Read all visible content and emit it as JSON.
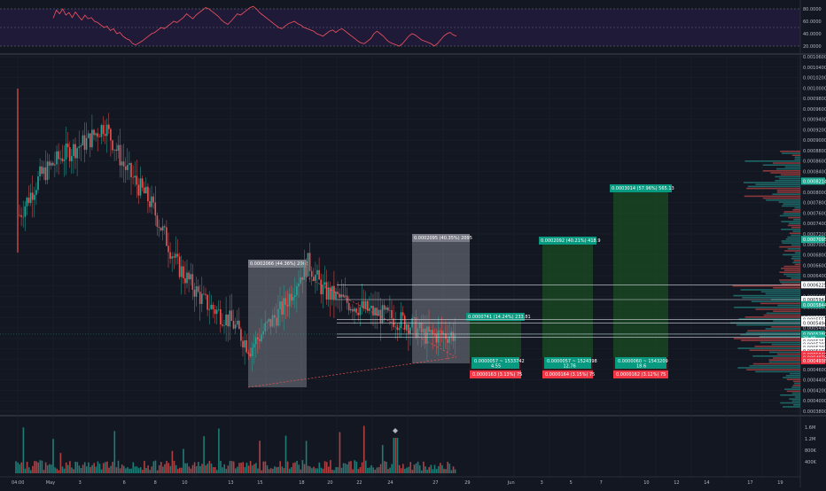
{
  "rsi": {
    "levels": [
      "80.0000",
      "60.0000",
      "40.0000",
      "20.0000"
    ],
    "values": [
      65,
      78,
      72,
      80,
      70,
      74,
      66,
      75,
      68,
      62,
      70,
      64,
      66,
      60,
      58,
      54,
      50,
      52,
      45,
      48,
      40,
      42,
      36,
      32,
      30,
      24,
      22,
      25,
      28,
      32,
      36,
      40,
      42,
      46,
      50,
      48,
      52,
      56,
      60,
      58,
      62,
      66,
      72,
      68,
      64,
      70,
      74,
      78,
      82,
      80,
      76,
      72,
      68,
      62,
      58,
      55,
      60,
      66,
      72,
      70,
      74,
      78,
      82,
      84,
      80,
      74,
      70,
      66,
      62,
      58,
      54,
      50,
      48,
      52,
      56,
      58,
      60,
      56,
      54,
      50,
      48,
      46,
      44,
      40,
      38,
      36,
      40,
      44,
      46,
      42,
      46,
      48,
      44,
      40,
      36,
      32,
      28,
      25,
      24,
      28,
      32,
      40,
      44,
      40,
      36,
      30,
      26,
      24,
      22,
      20,
      24,
      30,
      36,
      40,
      38,
      34,
      30,
      28,
      26,
      24,
      20,
      24,
      30,
      36,
      40,
      42,
      38,
      36
    ]
  },
  "price_axis": {
    "ticks": [
      "0.0010600",
      "0.0010400",
      "0.0010200",
      "0.0010000",
      "0.0009800",
      "0.0009600",
      "0.0009400",
      "0.0009200",
      "0.0009000",
      "0.0008800",
      "0.0008600",
      "0.0008400",
      "0.0008200",
      "0.0008000",
      "0.0007800",
      "0.0007600",
      "0.0007400",
      "0.0007200",
      "0.0007000",
      "0.0006800",
      "0.0006600",
      "0.0006400",
      "0.0006200",
      "0.0006000",
      "0.0005800",
      "0.0005600",
      "0.0005400",
      "0.0005200",
      "0.0005000",
      "0.0004800",
      "0.0004600",
      "0.0004400",
      "0.0004200",
      "0.0004000",
      "0.0003800"
    ],
    "badges": [
      {
        "text": "0.0008214",
        "color": "#22ab94",
        "price": 0.0008214
      },
      {
        "text": "0.0007095",
        "color": "#22ab94",
        "price": 0.0007095
      },
      {
        "text": "0.0006225",
        "color": "#ffffff",
        "price": 0.0006225
      },
      {
        "text": "0.0005942",
        "color": "#ffffff",
        "price": 0.0005942
      },
      {
        "text": "0.0005844",
        "color": "#22ab94",
        "price": 0.0005844
      },
      {
        "text": "0.0005557",
        "color": "#ffffff",
        "price": 0.0005557
      },
      {
        "text": "0.0005494",
        "color": "#ffffff",
        "price": 0.0005494
      },
      {
        "text": "0.0005280",
        "color": "#22ab94",
        "price": 0.000528
      },
      {
        "text": "30:40",
        "color": "#22ab94",
        "price": 0.00052
      },
      {
        "text": "0.0005257",
        "color": "#ffffff",
        "price": 0.000514
      },
      {
        "text": "0.0005203",
        "color": "#ffffff",
        "price": 0.000508
      },
      {
        "text": "0.0005207",
        "color": "#ffffff",
        "price": 0.000502
      },
      {
        "text": "0.0005070",
        "color": "#ffffff",
        "price": 0.000496
      },
      {
        "text": "0.0005040",
        "color": "#f23645",
        "price": 0.000489
      },
      {
        "text": "0.0004979",
        "color": "#f23645",
        "price": 0.000483
      },
      {
        "text": "0.0004938",
        "color": "#f23645",
        "price": 0.000477
      }
    ]
  },
  "time_axis": {
    "labels": [
      "04:00",
      "May",
      "3",
      "6",
      "8",
      "10",
      "13",
      "15",
      "18",
      "20",
      "22",
      "24",
      "27",
      "29",
      "Jun",
      "3",
      "5",
      "7",
      "10",
      "12",
      "14",
      "17",
      "19"
    ]
  },
  "volume_axis": {
    "labels": [
      "1.6M",
      "1.2M",
      "800K",
      "400K"
    ]
  },
  "positions": [
    {
      "target": "0.0002066 (44.36%) 2066",
      "target_color": "#787b86",
      "stop": "",
      "entry": ""
    },
    {
      "target": "0.0002095 (40.35%) 2095",
      "target_color": "#787b86",
      "stop": "",
      "entry": ""
    },
    {
      "target": "0.0000741 (14.24%) 233.81",
      "target_color": "#22ab94",
      "stop": "0.0000163 (3.13%) 75",
      "entry": "0.0000057 ~ 1533742\n4.55"
    },
    {
      "target": "0.0002092 (40.21%) 418.9",
      "target_color": "#22ab94",
      "stop": "0.0000164 (3.15%) 75",
      "entry": "0.0000057 ~ 1524398\n12.76"
    },
    {
      "target": "0.0003014 (57.96%) 565.13",
      "target_color": "#22ab94",
      "stop": "0.0000162 (3.12%) 75",
      "entry": "0.0000060 ~ 1543209\n18.6"
    }
  ],
  "colors": {
    "bg": "#131722",
    "up": "#26a69a",
    "down": "#ef5350",
    "rsi": "#f7525f",
    "rsi_band": "#7e57c2",
    "grid": "#1e222d"
  }
}
